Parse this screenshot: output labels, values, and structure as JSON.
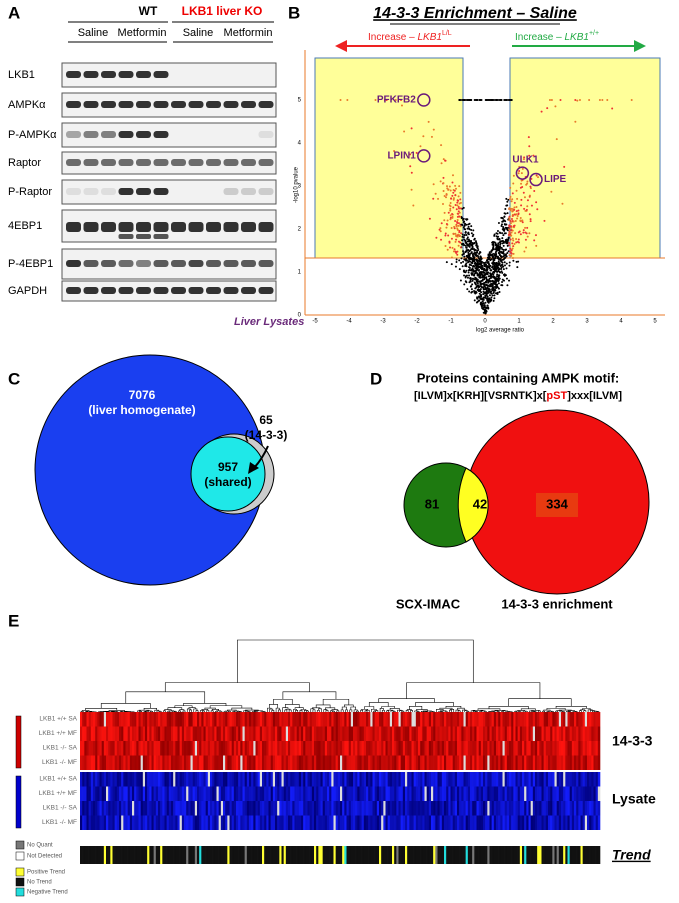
{
  "panel_a": {
    "letter": "A",
    "groups": [
      "WT",
      "LKB1 liver KO"
    ],
    "treatments": [
      "Saline",
      "Metformin",
      "Saline",
      "Metformin"
    ],
    "rows": [
      "LKB1",
      "AMPKα",
      "P-AMPKα",
      "Raptor",
      "P-Raptor",
      "4EBP1",
      "P-4EBP1",
      "GAPDH"
    ],
    "caption": "Liver Lysates"
  },
  "panel_b": {
    "letter": "B",
    "title": "14-3-3 Enrichment – Saline",
    "left_arrow": {
      "text": "Increase – ",
      "gene": "LKB1",
      "sup": "L/L"
    },
    "right_arrow": {
      "text": "Increase – ",
      "gene": "LKB1",
      "sup": "+/+"
    },
    "hits": [
      "PFKFB2",
      "LPIN1",
      "ULK1",
      "LIPE"
    ],
    "x_label": "log2 average ratio",
    "y_label": "-log10 pvalue",
    "xticks": [
      -5,
      -4,
      -3,
      -2,
      -1,
      0,
      1,
      2,
      3,
      4,
      5
    ],
    "yticks": [
      0,
      1,
      2,
      3,
      4,
      5
    ]
  },
  "panel_c": {
    "letter": "C",
    "homogenate": {
      "count": "7076",
      "label": "(liver homogenate)"
    },
    "shared": {
      "count": "957",
      "label": "(shared)"
    },
    "enriched": {
      "count": "65",
      "label": "(14-3-3)"
    }
  },
  "panel_d": {
    "letter": "D",
    "title": "Proteins containing AMPK motif:",
    "motif": [
      "[ILVM]x[KRH][VSRNTK]x[",
      "pST",
      "]xxx[ILVM]"
    ],
    "counts": [
      "81",
      "42",
      "334"
    ],
    "sets": [
      "SCX-IMAC",
      "14-3-3  enrichment"
    ]
  },
  "panel_e": {
    "letter": "E",
    "row_labels": [
      "LKB1 +/+ SA",
      "LKB1 +/+ MF",
      "LKB1 -/- SA",
      "LKB1 -/- MF",
      "LKB1 +/+ SA",
      "LKB1 +/+ MF",
      "LKB1 -/- SA",
      "LKB1 -/- MF"
    ],
    "blocks": [
      "14-3-3",
      "Lysate",
      "Trend"
    ],
    "legend": [
      "No Quant",
      "Not Detected",
      "Positive Trend",
      "No Trend",
      "Negative Trend"
    ]
  }
}
